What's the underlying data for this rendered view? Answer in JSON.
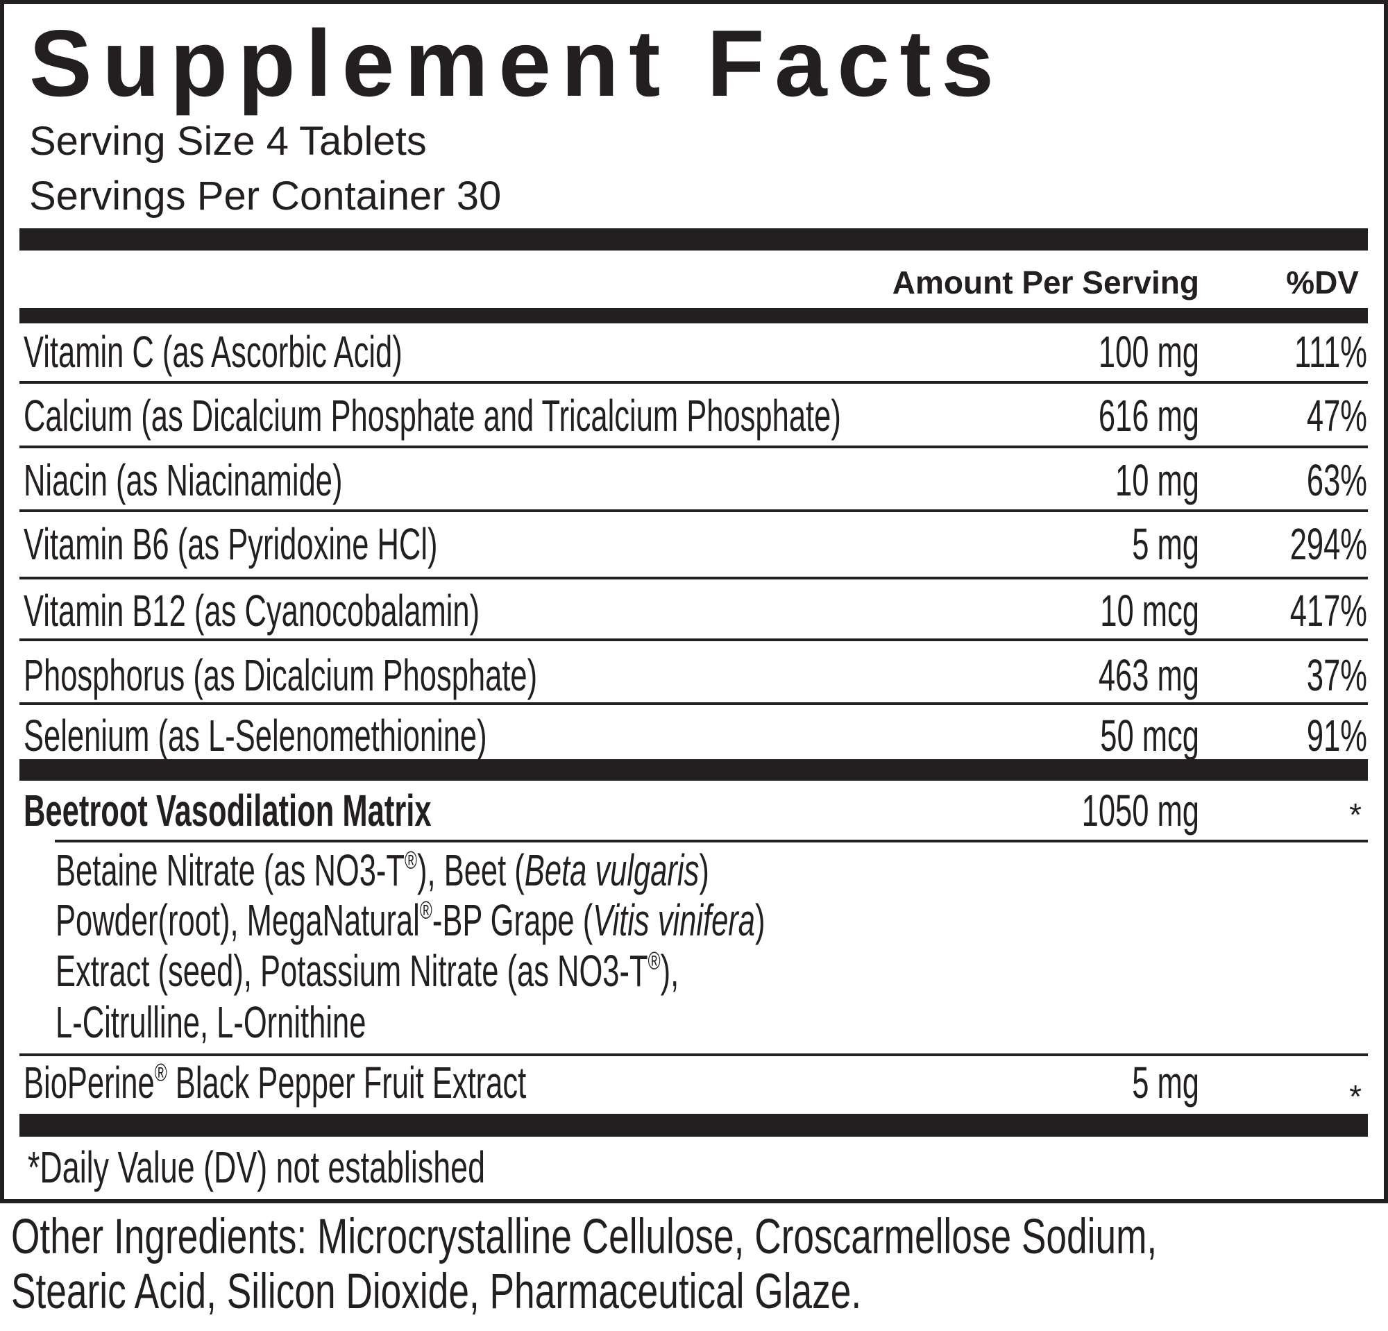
{
  "header": {
    "title": "Supplement Facts",
    "serving_size": "Serving Size 4 Tablets",
    "servings_per_container": "Servings Per Container 30"
  },
  "columns": {
    "amount": "Amount Per Serving",
    "dv": "%DV"
  },
  "rows": [
    {
      "name": "Vitamin C (as Ascorbic Acid)",
      "amount": "100 mg",
      "dv": "111%"
    },
    {
      "name": "Calcium (as Dicalcium Phosphate and Tricalcium Phosphate)",
      "amount": "616 mg",
      "dv": "47%"
    },
    {
      "name": "Niacin (as Niacinamide)",
      "amount": "10 mg",
      "dv": "63%"
    },
    {
      "name": "Vitamin B6 (as Pyridoxine HCl)",
      "amount": "5 mg",
      "dv": "294%"
    },
    {
      "name": "Vitamin B12 (as Cyanocobalamin)",
      "amount": "10 mcg",
      "dv": "417%"
    },
    {
      "name": "Phosphorus (as Dicalcium Phosphate)",
      "amount": "463 mg",
      "dv": "37%"
    },
    {
      "name": "Selenium (as L-Selenomethionine)",
      "amount": "50 mcg",
      "dv": "91%"
    }
  ],
  "blend": {
    "name": "Beetroot Vasodilation Matrix",
    "amount": "1050 mg",
    "dv": "*",
    "ingredients": [
      [
        "Betaine Nitrate (as NO3-T",
        "®",
        "), Beet (",
        "Beta vulgaris",
        ")"
      ],
      [
        "Powder(root), MegaNatural",
        "®",
        "-BP Grape (",
        "Vitis vinifera",
        ")"
      ],
      [
        "Extract (seed), Potassium Nitrate (as NO3-T",
        "®",
        "),"
      ],
      [
        "L-Citrulline, L-Ornithine"
      ]
    ]
  },
  "bioperine": {
    "name": [
      "BioPerine",
      "®",
      " Black Pepper Fruit Extract"
    ],
    "amount": "5 mg",
    "dv": "*"
  },
  "footnote": "*Daily Value (DV) not established",
  "other_ingredients": [
    "Other Ingredients: Microcrystalline Cellulose, Croscarmellose Sodium,",
    "Stearic Acid, Silicon Dioxide, Pharmaceutical Glaze."
  ]
}
